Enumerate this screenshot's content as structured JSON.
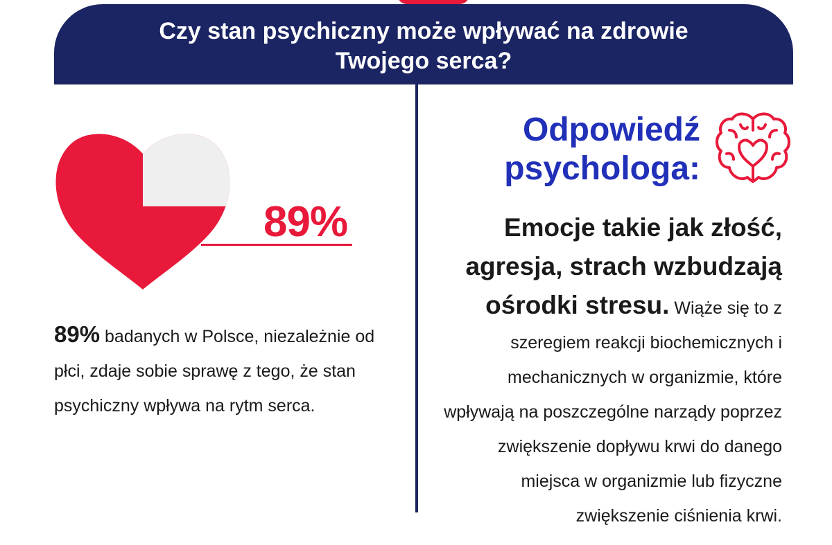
{
  "header": {
    "line1": "Czy stan psychiczny może wpływać na zdrowie",
    "line2": "Twojego serca?"
  },
  "stat": {
    "value": "89%",
    "fill_fraction": 0.89
  },
  "left": {
    "bold": "89%",
    "rest": " badanych w Polsce, niezależnie od płci, zdaje sobie sprawę z tego, że stan psychiczny wpływa na rytm serca."
  },
  "answer": {
    "title_line1": "Odpowiedź",
    "title_line2": "psychologa:",
    "emphasis": "Emocje takie jak złość, agresja, strach wzbudzają ośrodki stresu.",
    "body": " Wiąże się to z szeregiem reakcji biochemicznych i mechanicznych w organizmie, które wpływają na poszczególne narządy poprzez zwiększenie dopływu krwi do danego miejsca w organizmie lub fizyczne zwiększenie ciśnienia krwi."
  },
  "icons": {
    "heart": "heart-icon",
    "brain": "brain-heart-icon"
  },
  "colors": {
    "navy": "#1b2563",
    "red": "#e8193a",
    "blue": "#2130b8",
    "grey": "#efefef"
  }
}
